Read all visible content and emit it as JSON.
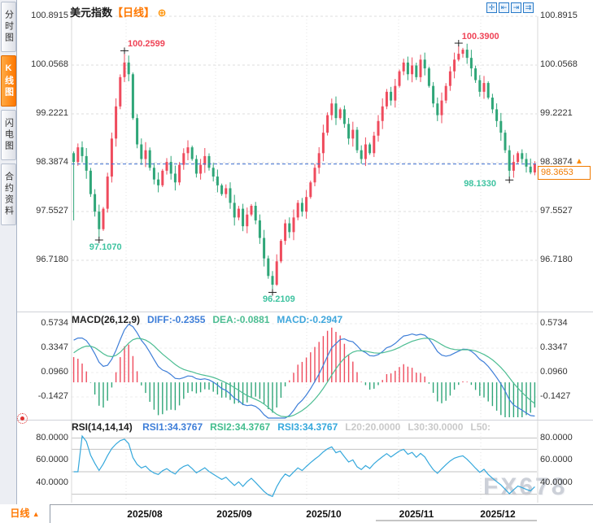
{
  "app": {
    "title_symbol": "美元指数",
    "title_period": "【日线】",
    "add_icon": "⊕"
  },
  "sidebar": {
    "tabs": [
      {
        "label": "分时图",
        "active": false
      },
      {
        "label": "K线图",
        "active": true
      },
      {
        "label": "闪电图",
        "active": false
      },
      {
        "label": "合约资料",
        "active": false
      }
    ]
  },
  "toolbar": {
    "icons": [
      {
        "name": "crosshair",
        "glyph": "✛"
      },
      {
        "name": "zoom-out",
        "glyph": "⇤"
      },
      {
        "name": "zoom-in",
        "glyph": "⇥"
      },
      {
        "name": "reset-view",
        "glyph": "⇉"
      }
    ]
  },
  "bottom": {
    "period_label": "日线",
    "period_arrow": "▲",
    "x_labels": [
      "2025/08",
      "2025/09",
      "2025/10",
      "2025/11",
      "2025/12"
    ]
  },
  "watermark": "FX678",
  "colors": {
    "up": "#ef4b5d",
    "down": "#2fa678",
    "up_text": "#ef4356",
    "down_text": "#3ec3a0",
    "accent_orange": "#ff7800",
    "diff_blue": "#3e7ed8",
    "dea_green": "#4cbd92",
    "macd_cyan": "#3ea6dc",
    "rsi1": "#3e7ed8",
    "rsi2": "#43bd8e",
    "rsi3": "#35a8dc",
    "grey_label": "#c9c9c9",
    "axis_text": "#333333",
    "current_line_blue": "#3f6fd0",
    "grid": "#dedede",
    "level_line": "#c3c3c3"
  },
  "chart_data": {
    "type": "candlestick",
    "title": "美元指数 日线 (US Dollar Index, daily)",
    "panels": [
      "price",
      "MACD",
      "RSI"
    ],
    "x_labels": [
      "2025/08",
      "2025/09",
      "2025/10",
      "2025/11",
      "2025/12"
    ],
    "price": {
      "y_ticks": [
        "100.8915",
        "100.0568",
        "99.2221",
        "98.3874",
        "97.5527",
        "96.7180"
      ],
      "y_tick_values": [
        100.8915,
        100.0568,
        99.2221,
        98.3874,
        97.5527,
        96.718
      ],
      "current_price": "98.3653",
      "current_price_value": 98.3653,
      "direction_arrow": "▲",
      "open_first": 98.55,
      "closes": [
        98.4,
        98.65,
        98.5,
        98.25,
        97.85,
        97.55,
        97.25,
        97.6,
        98.15,
        98.8,
        99.35,
        99.85,
        100.1,
        99.9,
        99.15,
        98.7,
        98.45,
        98.6,
        98.3,
        98.1,
        98.0,
        98.25,
        98.4,
        98.2,
        98.05,
        98.35,
        98.55,
        98.65,
        98.45,
        98.2,
        98.35,
        98.5,
        98.3,
        98.15,
        98.0,
        97.85,
        97.95,
        97.7,
        97.45,
        97.6,
        97.3,
        97.5,
        97.65,
        97.4,
        97.1,
        96.75,
        96.45,
        96.3,
        96.7,
        97.05,
        97.35,
        97.2,
        97.45,
        97.7,
        97.55,
        97.8,
        98.05,
        98.3,
        98.55,
        98.9,
        99.2,
        99.4,
        99.15,
        99.3,
        99.05,
        98.8,
        98.95,
        98.6,
        98.45,
        98.7,
        98.55,
        98.85,
        99.1,
        99.35,
        99.6,
        99.45,
        99.7,
        99.95,
        100.1,
        99.9,
        100.05,
        99.85,
        100.15,
        100.0,
        99.7,
        99.4,
        99.2,
        99.45,
        99.7,
        99.95,
        100.15,
        100.25,
        100.32,
        100.18,
        100.0,
        99.8,
        99.6,
        99.75,
        99.5,
        99.3,
        99.1,
        98.9,
        98.6,
        98.25,
        98.4,
        98.55,
        98.45,
        98.32,
        98.22,
        98.3653
      ],
      "extremes": [
        {
          "index": 0,
          "low": 97.4
        },
        {
          "index": 6,
          "low": 97.107
        },
        {
          "index": 12,
          "high": 100.2599
        },
        {
          "index": 47,
          "low": 96.2109
        },
        {
          "index": 48,
          "low": 96.28
        },
        {
          "index": 91,
          "high": 100.39
        },
        {
          "index": 92,
          "high": 100.35
        },
        {
          "index": 103,
          "low": 98.133
        },
        {
          "index": 108,
          "low": 98.19
        }
      ],
      "annotations": [
        {
          "index": 12,
          "price": 100.2599,
          "text": "100.2599",
          "kind": "high"
        },
        {
          "index": 6,
          "price": 97.107,
          "text": "97.1070",
          "kind": "low"
        },
        {
          "index": 47,
          "price": 96.2109,
          "text": "96.2109",
          "kind": "low"
        },
        {
          "index": 91,
          "price": 100.39,
          "text": "100.3900",
          "kind": "high"
        },
        {
          "index": 103,
          "price": 98.133,
          "text": "98.1330",
          "kind": "low",
          "align": "left"
        }
      ]
    },
    "macd": {
      "label": "MACD(26,12,9)",
      "params": [
        26,
        12,
        9
      ],
      "diff_label": "DIFF:-0.2355",
      "dea_label": "DEA:-0.0881",
      "macd_label": "MACD:-0.2947",
      "y_ticks": [
        "0.5734",
        "0.3347",
        "0.0960",
        "-0.1427"
      ],
      "y_tick_values": [
        0.5734,
        0.3347,
        0.096,
        -0.1427
      ]
    },
    "rsi": {
      "label": "RSI(14,14,14)",
      "params": [
        14,
        14,
        14
      ],
      "values": [
        "RSI1:34.3767",
        "RSI2:34.3767",
        "RSI3:34.3767",
        "L20:20.0000",
        "L30:30.0000",
        "L50:"
      ],
      "y_ticks": [
        "80.0000",
        "60.0000",
        "40.0000"
      ],
      "y_tick_values": [
        80,
        60,
        40
      ],
      "levels": [
        80,
        70,
        50,
        30
      ]
    }
  }
}
